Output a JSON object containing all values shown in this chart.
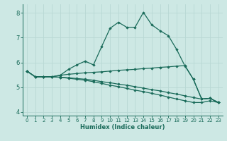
{
  "xlabel": "Humidex (Indice chaleur)",
  "xlim": [
    -0.5,
    23.5
  ],
  "ylim": [
    3.85,
    8.35
  ],
  "yticks": [
    4,
    5,
    6,
    7,
    8
  ],
  "xticks": [
    0,
    1,
    2,
    3,
    4,
    5,
    6,
    7,
    8,
    9,
    10,
    11,
    12,
    13,
    14,
    15,
    16,
    17,
    18,
    19,
    20,
    21,
    22,
    23
  ],
  "bg_color": "#cde8e4",
  "grid_color": "#b8d8d4",
  "line_color": "#1a6b5a",
  "lines": [
    {
      "x": [
        0,
        1,
        2,
        3,
        4,
        5,
        6,
        7,
        8,
        9,
        10,
        11,
        12,
        13,
        14,
        15,
        16,
        17,
        18,
        19,
        20,
        21,
        22,
        23
      ],
      "y": [
        5.65,
        5.42,
        5.42,
        5.42,
        5.48,
        5.72,
        5.9,
        6.05,
        5.9,
        6.65,
        7.38,
        7.62,
        7.42,
        7.42,
        8.02,
        7.52,
        7.28,
        7.08,
        6.52,
        5.85,
        5.32,
        4.52,
        4.55,
        4.38
      ]
    },
    {
      "x": [
        0,
        1,
        2,
        3,
        4,
        5,
        6,
        7,
        8,
        9,
        10,
        11,
        12,
        13,
        14,
        15,
        16,
        17,
        18,
        19,
        20,
        21,
        22,
        23
      ],
      "y": [
        5.65,
        5.42,
        5.42,
        5.42,
        5.48,
        5.52,
        5.55,
        5.58,
        5.6,
        5.62,
        5.65,
        5.68,
        5.7,
        5.72,
        5.75,
        5.77,
        5.8,
        5.82,
        5.85,
        5.87,
        5.32,
        4.52,
        4.55,
        4.38
      ]
    },
    {
      "x": [
        0,
        1,
        2,
        3,
        4,
        5,
        6,
        7,
        8,
        9,
        10,
        11,
        12,
        13,
        14,
        15,
        16,
        17,
        18,
        19,
        20,
        21,
        22,
        23
      ],
      "y": [
        5.65,
        5.42,
        5.42,
        5.42,
        5.4,
        5.38,
        5.35,
        5.32,
        5.28,
        5.22,
        5.18,
        5.12,
        5.08,
        5.02,
        4.96,
        4.9,
        4.85,
        4.78,
        4.72,
        4.65,
        4.58,
        4.52,
        4.55,
        4.38
      ]
    },
    {
      "x": [
        0,
        1,
        2,
        3,
        4,
        5,
        6,
        7,
        8,
        9,
        10,
        11,
        12,
        13,
        14,
        15,
        16,
        17,
        18,
        19,
        20,
        21,
        22,
        23
      ],
      "y": [
        5.65,
        5.42,
        5.42,
        5.42,
        5.4,
        5.36,
        5.32,
        5.28,
        5.22,
        5.15,
        5.08,
        5.02,
        4.95,
        4.88,
        4.82,
        4.75,
        4.68,
        4.6,
        4.52,
        4.45,
        4.38,
        4.38,
        4.45,
        4.38
      ]
    }
  ],
  "marker": "D",
  "markersize": 1.8,
  "linewidth": 0.9
}
